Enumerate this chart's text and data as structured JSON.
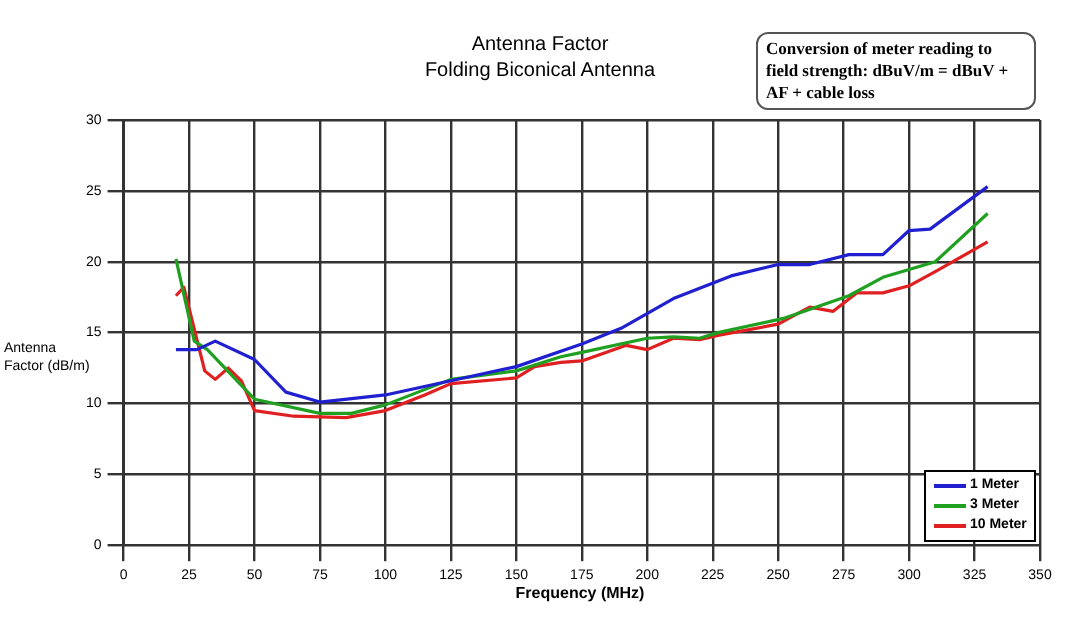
{
  "chart_data": {
    "type": "line",
    "title": "Antenna Factor",
    "subtitle": "Folding Biconical Antenna",
    "xlabel": "Frequency (MHz)",
    "ylabel": "Antenna Factor (dB/m)",
    "annotations": [
      "Conversion of meter reading to field strength: dBuV/m = dBuV + AF + cable loss"
    ],
    "xlim": [
      0,
      350
    ],
    "xticks": [
      0,
      25,
      50,
      75,
      100,
      125,
      150,
      175,
      200,
      225,
      250,
      275,
      300,
      325,
      350
    ],
    "ylim": [
      0,
      30
    ],
    "yticks": [
      0,
      5,
      10,
      15,
      20,
      25,
      30
    ],
    "grid": true,
    "legend": "bottom right",
    "marker": "none",
    "line_style": "solid",
    "series": [
      {
        "name": "1 Meter",
        "color": "#2020d0",
        "x": [
          20,
          28,
          35,
          50,
          62,
          75,
          100,
          125,
          150,
          175,
          190,
          210,
          232,
          250,
          262,
          277,
          290,
          300,
          308,
          330
        ],
        "values": [
          13.8,
          13.8,
          14.4,
          13.1,
          10.8,
          10.1,
          10.6,
          11.6,
          12.6,
          14.2,
          15.3,
          17.4,
          19,
          19.8,
          19.8,
          20.5,
          20.5,
          22.2,
          22.3,
          25.3
        ]
      },
      {
        "name": "3 Meter",
        "color": "#20a020",
        "x": [
          20,
          27,
          32,
          50,
          75,
          87,
          100,
          125,
          150,
          167,
          175,
          200,
          210,
          220,
          227,
          252,
          277,
          290,
          310,
          330
        ],
        "values": [
          20.2,
          14.4,
          13.8,
          10.3,
          9.3,
          9.3,
          9.9,
          11.7,
          12.3,
          13.3,
          13.6,
          14.6,
          14.7,
          14.6,
          15,
          16,
          17.6,
          18.9,
          20,
          23.4
        ]
      },
      {
        "name": "10 Meter",
        "color": "#e02020",
        "x": [
          20,
          23,
          31,
          35,
          40,
          45,
          50,
          65,
          85,
          100,
          115,
          125,
          150,
          157,
          167,
          175,
          192,
          200,
          210,
          220,
          227,
          250,
          262,
          271,
          280,
          290,
          300,
          310,
          330
        ],
        "values": [
          17.6,
          18.2,
          12.3,
          11.7,
          12.5,
          11.6,
          9.5,
          9.1,
          9,
          9.5,
          10.6,
          11.4,
          11.8,
          12.6,
          12.9,
          13,
          14.1,
          13.8,
          14.6,
          14.5,
          14.8,
          15.6,
          16.8,
          16.5,
          17.8,
          17.8,
          18.3,
          19.3,
          21.4
        ]
      }
    ]
  }
}
